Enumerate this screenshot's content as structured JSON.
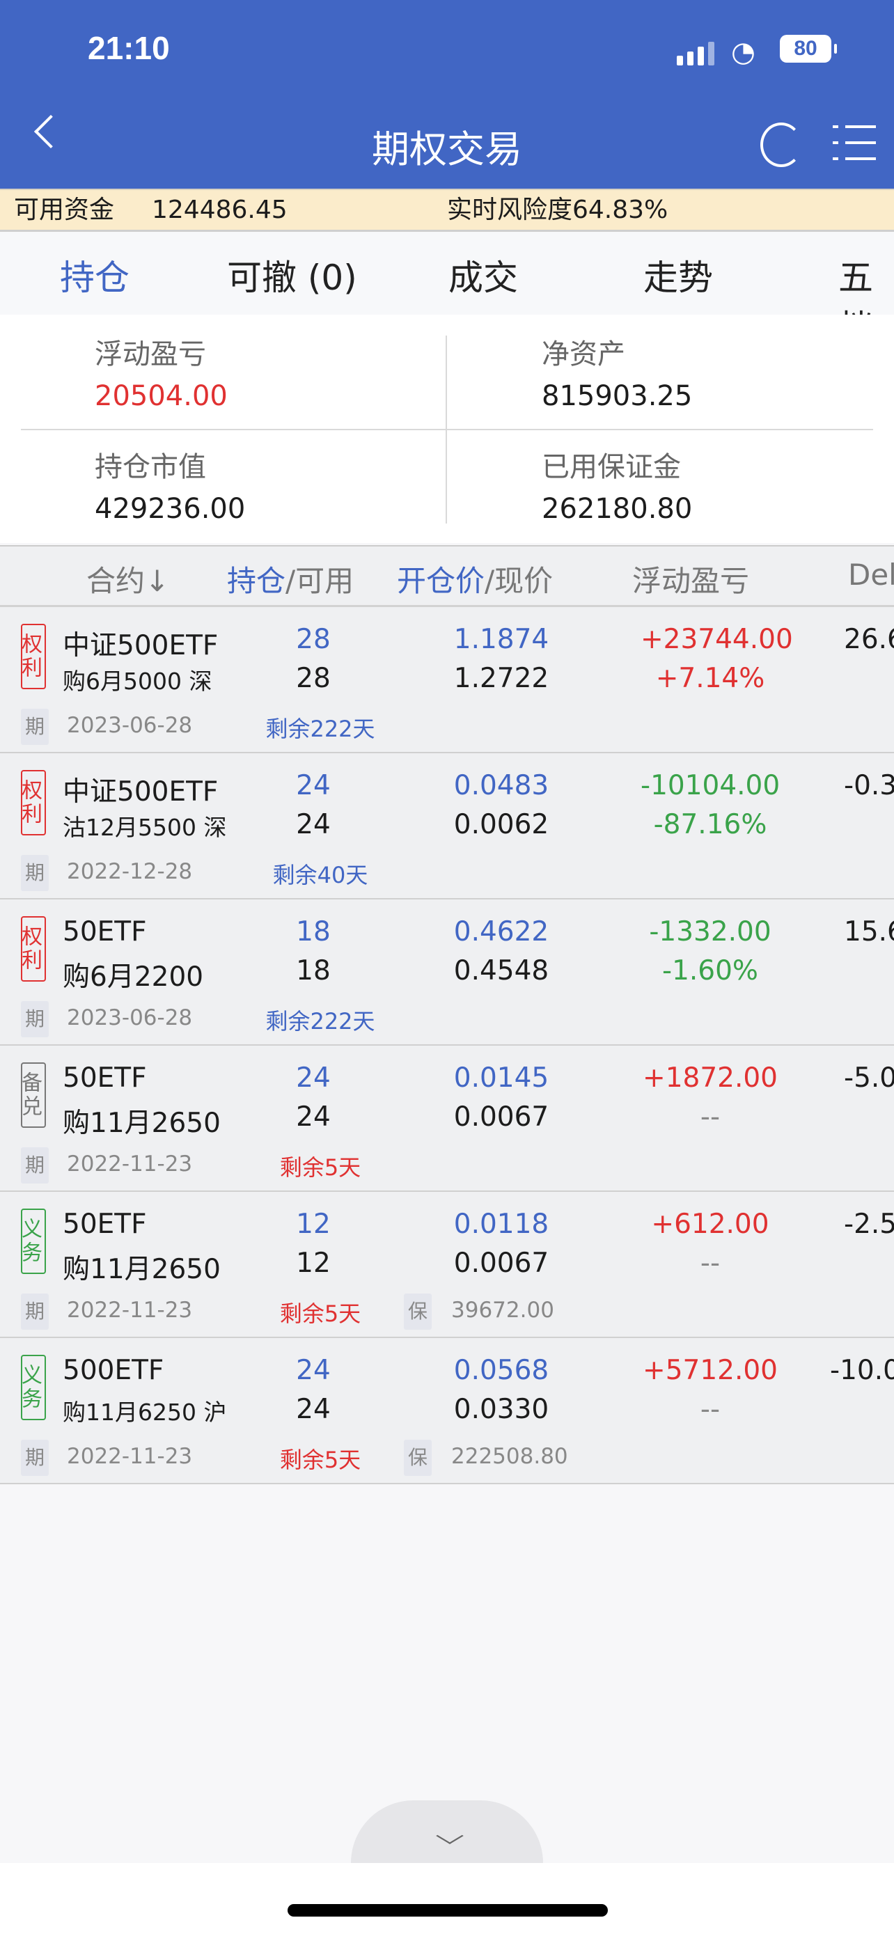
{
  "status_bar": {
    "time": "21:10",
    "battery": "80"
  },
  "nav": {
    "title": "期权交易",
    "back_icon": "chevron-left-icon",
    "refresh_icon": "refresh-icon",
    "menu_icon": "menu-icon"
  },
  "funds_bar": {
    "available_label": "可用资金",
    "available_value": "124486.45",
    "risk_label": "实时风险度64.83%"
  },
  "tabs": [
    {
      "label": "持仓",
      "active": true
    },
    {
      "label": "可撤 (0)"
    },
    {
      "label": "成交"
    },
    {
      "label": "走势"
    },
    {
      "label": "五档"
    }
  ],
  "summary": {
    "floating_pnl_label": "浮动盈亏",
    "floating_pnl": "20504.00",
    "net_assets_label": "净资产",
    "net_assets": "815903.25",
    "market_value_label": "持仓市值",
    "market_value": "429236.00",
    "margin_used_label": "已用保证金",
    "margin_used": "262180.80"
  },
  "table_header": {
    "contract": "合约↓",
    "position": "持仓",
    "available": "/可用",
    "open_price": "开仓价",
    "current_price": "/现价",
    "pnl": "浮动盈亏",
    "delta": "Delta"
  },
  "colors": {
    "brand": "#4166c4",
    "up": "#e03131",
    "down": "#3aa34a"
  },
  "rows": [
    {
      "badge": "权利",
      "badge_type": "right",
      "name": "中证500ETF",
      "detail": "购6月5000 深",
      "position": "28",
      "available": "28",
      "open_price": "1.1874",
      "current_price": "1.2722",
      "pnl": "+23744.00",
      "pnl_pct": "+7.14%",
      "trend": "up",
      "delta": "26.6",
      "exp_tag": "期",
      "expiry": "2023-06-28",
      "remaining": "剩余222天",
      "remaining_urgent": false
    },
    {
      "badge": "权利",
      "badge_type": "right",
      "name": "中证500ETF",
      "detail": "沽12月5500 深",
      "position": "24",
      "available": "24",
      "open_price": "0.0483",
      "current_price": "0.0062",
      "pnl": "-10104.00",
      "pnl_pct": "-87.16%",
      "trend": "down",
      "delta": "-0.3",
      "exp_tag": "期",
      "expiry": "2022-12-28",
      "remaining": "剩余40天",
      "remaining_urgent": false
    },
    {
      "badge": "权利",
      "badge_type": "right",
      "name": "50ETF",
      "detail": "购6月2200",
      "position": "18",
      "available": "18",
      "open_price": "0.4622",
      "current_price": "0.4548",
      "pnl": "-1332.00",
      "pnl_pct": "-1.60%",
      "trend": "down",
      "delta": "15.6",
      "exp_tag": "期",
      "expiry": "2023-06-28",
      "remaining": "剩余222天",
      "remaining_urgent": false
    },
    {
      "badge": "备兑",
      "badge_type": "covered",
      "name": "50ETF",
      "detail": "购11月2650",
      "position": "24",
      "available": "24",
      "open_price": "0.0145",
      "current_price": "0.0067",
      "pnl": "+1872.00",
      "pnl_pct": "--",
      "trend": "up",
      "delta": "-5.0",
      "exp_tag": "期",
      "expiry": "2022-11-23",
      "remaining": "剩余5天",
      "remaining_urgent": true
    },
    {
      "badge": "义务",
      "badge_type": "obligation",
      "name": "50ETF",
      "detail": "购11月2650",
      "position": "12",
      "available": "12",
      "open_price": "0.0118",
      "current_price": "0.0067",
      "pnl": "+612.00",
      "pnl_pct": "--",
      "trend": "up",
      "delta": "-2.5",
      "exp_tag": "期",
      "expiry": "2022-11-23",
      "remaining": "剩余5天",
      "remaining_urgent": true,
      "margin_tag": "保",
      "margin": "39672.00"
    },
    {
      "badge": "义务",
      "badge_type": "obligation",
      "name": "500ETF",
      "detail": "购11月6250 沪",
      "position": "24",
      "available": "24",
      "open_price": "0.0568",
      "current_price": "0.0330",
      "pnl": "+5712.00",
      "pnl_pct": "--",
      "trend": "up",
      "delta": "-10.0",
      "exp_tag": "期",
      "expiry": "2022-11-23",
      "remaining": "剩余5天",
      "remaining_urgent": true,
      "margin_tag": "保",
      "margin": "222508.80"
    }
  ]
}
